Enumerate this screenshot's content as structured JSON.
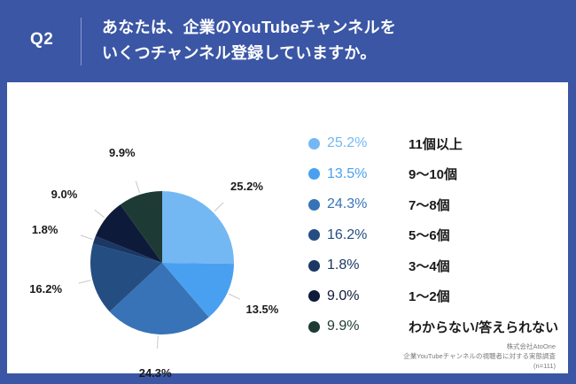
{
  "header": {
    "question_number": "Q2",
    "title_line1": "あなたは、企業のYouTubeチャンネルを",
    "title_line2": "いくつチャンネル登録していますか。"
  },
  "colors": {
    "frame": "#3a56a5",
    "panel": "#ffffff"
  },
  "legend": [
    {
      "pct": "25.2%",
      "label": "11個以上",
      "color": "#74b8f3"
    },
    {
      "pct": "13.5%",
      "label": "9〜10個",
      "color": "#4aa0f0"
    },
    {
      "pct": "24.3%",
      "label": "7〜8個",
      "color": "#3773b6"
    },
    {
      "pct": "16.2%",
      "label": "5〜6個",
      "color": "#244e82"
    },
    {
      "pct": "1.8%",
      "label": "3〜4個",
      "color": "#1b3764"
    },
    {
      "pct": "9.0%",
      "label": "1〜2個",
      "color": "#0d1a3a"
    },
    {
      "pct": "9.9%",
      "label": "わからない/答えられない",
      "color": "#1e3a34"
    }
  ],
  "source": {
    "line1": "株式会社AtoOne",
    "line2": "企業YouTubeチャンネルの視聴者に対する実態調査",
    "line3": "(n=111)"
  },
  "chart_data": {
    "type": "pie",
    "title": "あなたは、企業のYouTubeチャンネルをいくつチャンネル登録していますか。",
    "categories": [
      "11個以上",
      "9〜10個",
      "7〜8個",
      "5〜6個",
      "3〜4個",
      "1〜2個",
      "わからない/答えられない"
    ],
    "values": [
      25.2,
      13.5,
      24.3,
      16.2,
      1.8,
      9.0,
      9.9
    ],
    "unit": "%",
    "colors": [
      "#74b8f3",
      "#4aa0f0",
      "#3773b6",
      "#244e82",
      "#1b3764",
      "#0d1a3a",
      "#1e3a34"
    ],
    "start_angle": "12 o'clock, clockwise",
    "legend_position": "right",
    "n": 111
  }
}
